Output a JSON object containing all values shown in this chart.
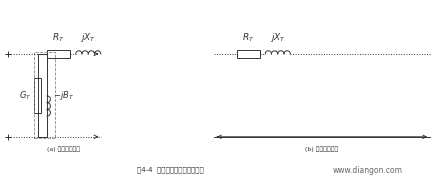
{
  "bg_color": "#ffffff",
  "line_color": "#333333",
  "text_color": "#333333",
  "dot_color": "#888888",
  "fig_width": 4.48,
  "fig_height": 1.84,
  "dpi": 100,
  "caption": "图4-4  变压器电气参数等値电路",
  "watermark": "www.diangon.com",
  "label_a": "(a) 厂型等値电路",
  "label_b": "(b) 简化等値电路",
  "R_T_label": "$R_T$",
  "jX_T_label": "$jX_T$",
  "G_T_label": "$G_T$",
  "jB_T_label": "$-jB_T$"
}
